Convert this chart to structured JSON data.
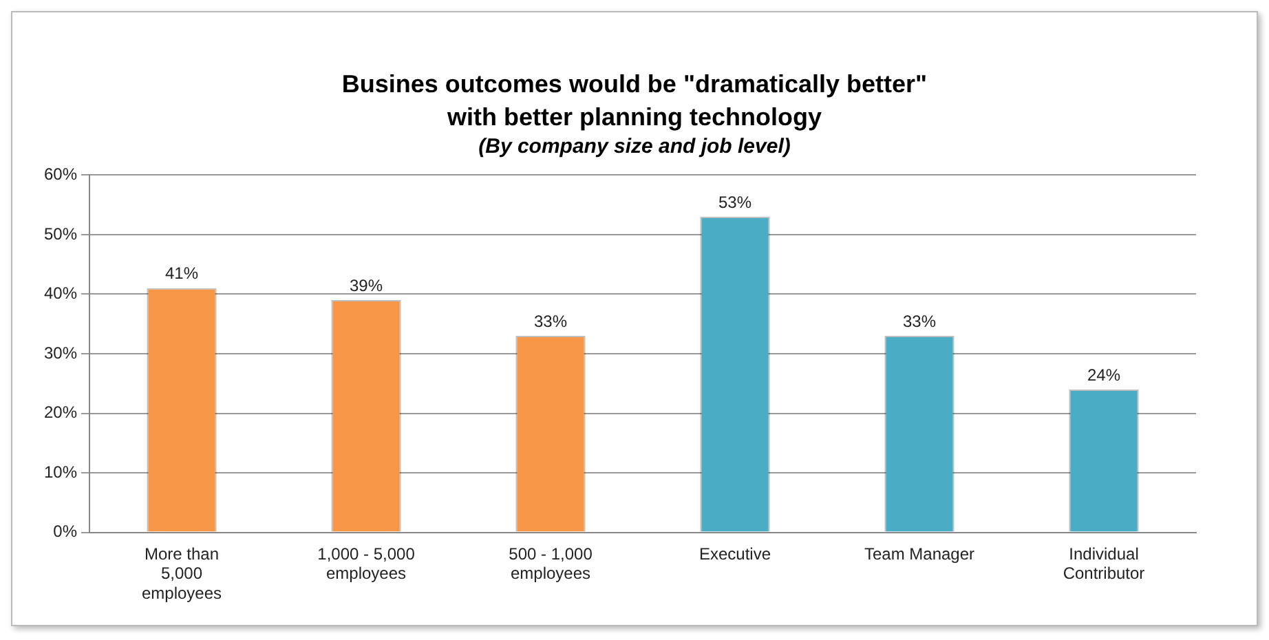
{
  "chart_data": {
    "type": "bar",
    "title": "Busines outcomes would be \"dramatically better\" with better planning technology",
    "subtitle": "(By company size and job level)",
    "categories": [
      "More than 5,000 employees",
      "1,000 - 5,000 employees",
      "500 - 1,000 employees",
      "Executive",
      "Team Manager",
      "Individual Contributor"
    ],
    "values": [
      41,
      39,
      33,
      53,
      33,
      24
    ],
    "colors": [
      "#f79646",
      "#f79646",
      "#f79646",
      "#4bacc6",
      "#4bacc6",
      "#4bacc6"
    ],
    "ylim": [
      0,
      60
    ],
    "yticks": [
      {
        "value": 0,
        "label": "0%"
      },
      {
        "value": 10,
        "label": "10%"
      },
      {
        "value": 20,
        "label": "20%"
      },
      {
        "value": 30,
        "label": "30%"
      },
      {
        "value": 40,
        "label": "40%"
      },
      {
        "value": 50,
        "label": "50%"
      },
      {
        "value": 60,
        "label": "60%"
      }
    ],
    "value_labels": [
      "41%",
      "39%",
      "33%",
      "53%",
      "33%",
      "24%"
    ],
    "grid": "y",
    "legend": false
  }
}
